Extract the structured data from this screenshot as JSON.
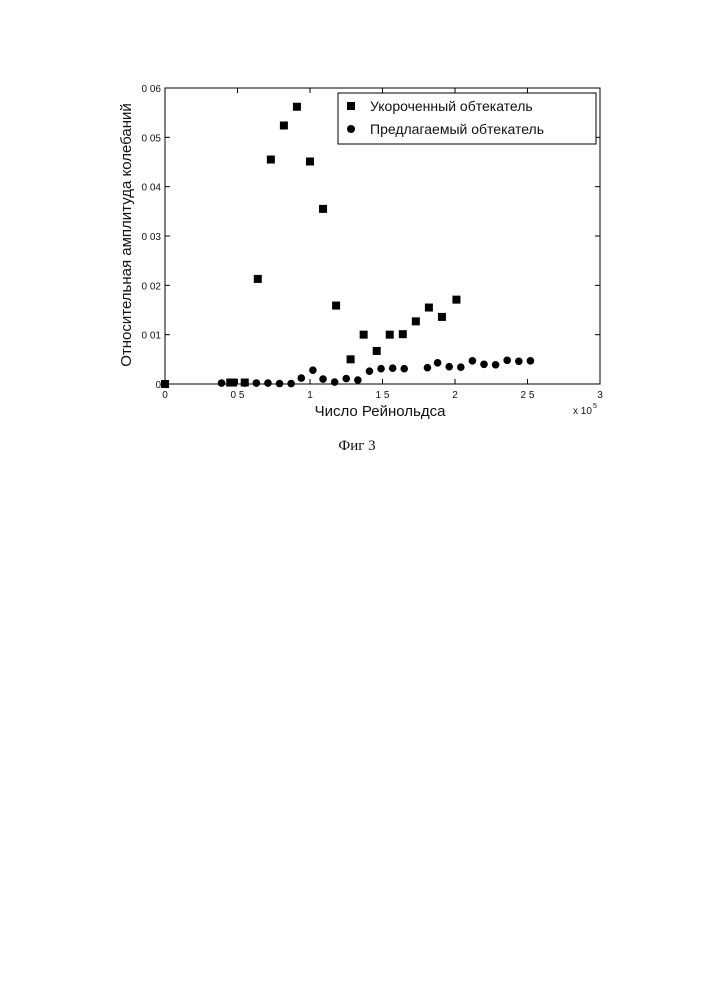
{
  "figure_caption": "Фиг 3",
  "chart_data": {
    "type": "scatter",
    "xlabel": "Число Рейнольдса",
    "ylabel": "Относительная амплитуда колебаний",
    "x_multiplier_label": "x 10",
    "x_multiplier_exp": "5",
    "xlim": [
      0,
      3
    ],
    "ylim": [
      0,
      0.06
    ],
    "x_ticks": [
      0,
      0.5,
      1,
      1.5,
      2,
      2.5,
      3
    ],
    "x_tick_labels": [
      "0",
      "0 5",
      "1",
      "1 5",
      "2",
      "2 5",
      "3"
    ],
    "y_ticks": [
      0,
      0.01,
      0.02,
      0.03,
      0.04,
      0.05,
      0.06
    ],
    "y_tick_labels": [
      "0",
      "0 01",
      "0 02",
      "0 03",
      "0 04",
      "0 05",
      "0 06"
    ],
    "legend_position": "top-right",
    "series": [
      {
        "name": "Укороченный обтекатель",
        "marker": "square",
        "color": "#000000",
        "x": [
          0,
          0.45,
          0.47,
          0.55,
          0.64,
          0.73,
          0.82,
          0.91,
          1.0,
          1.09,
          1.18,
          1.28,
          1.37,
          1.46,
          1.55,
          1.64,
          1.73,
          1.82,
          1.91,
          2.01
        ],
        "y": [
          0,
          0.0003,
          0.0003,
          0.0003,
          0.0213,
          0.0455,
          0.0524,
          0.0562,
          0.0451,
          0.0355,
          0.0159,
          0.005,
          0.01,
          0.0067,
          0.01,
          0.0101,
          0.0127,
          0.0155,
          0.0136,
          0.0171
        ]
      },
      {
        "name": "Предлагаемый обтекатель",
        "marker": "circle",
        "color": "#000000",
        "x": [
          0,
          0.39,
          0.47,
          0.55,
          0.63,
          0.71,
          0.79,
          0.87,
          0.94,
          1.02,
          1.09,
          1.17,
          1.25,
          1.33,
          1.41,
          1.49,
          1.57,
          1.65,
          1.81,
          1.88,
          1.96,
          2.04,
          2.12,
          2.2,
          2.28,
          2.36,
          2.44,
          2.52
        ],
        "y": [
          0,
          0.0002,
          0.0003,
          0.0002,
          0.0002,
          0.0002,
          0.0001,
          0.0001,
          0.0012,
          0.0028,
          0.001,
          0.0004,
          0.0011,
          0.0008,
          0.0026,
          0.0031,
          0.0032,
          0.0031,
          0.0033,
          0.0043,
          0.0035,
          0.0034,
          0.0047,
          0.004,
          0.0039,
          0.0048,
          0.0046,
          0.0047
        ]
      }
    ]
  }
}
